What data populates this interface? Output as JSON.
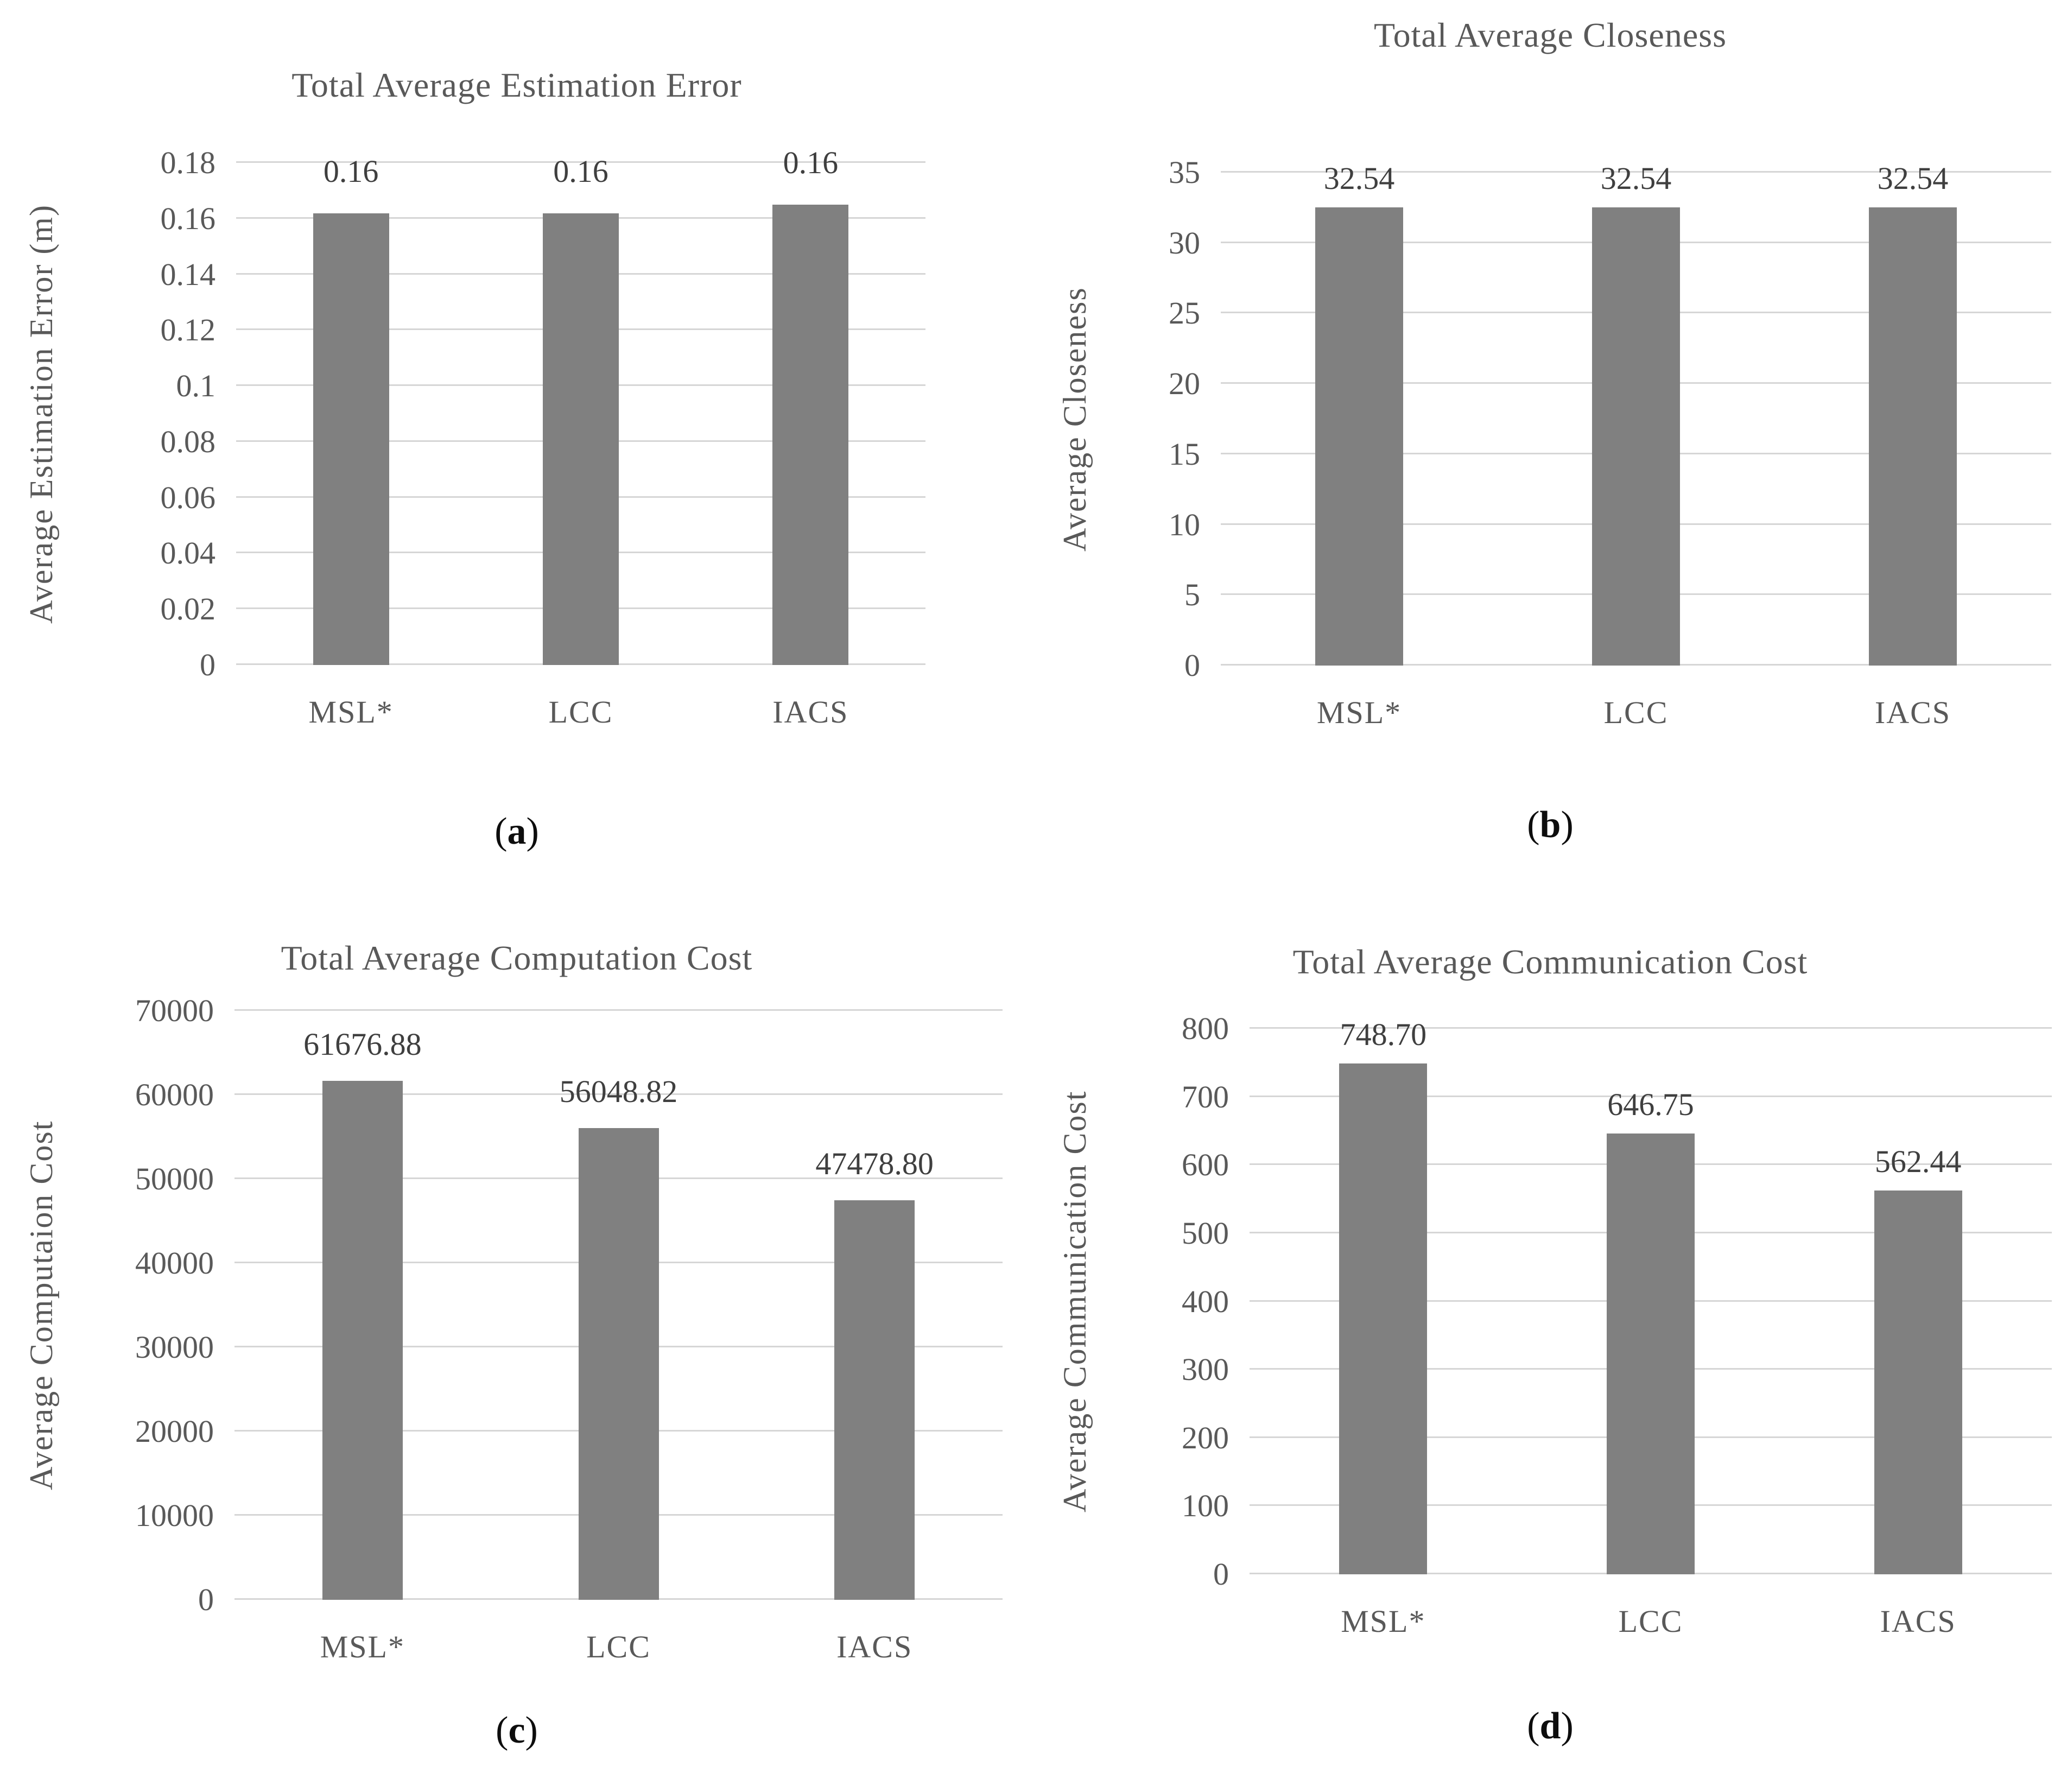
{
  "figure": {
    "bar_color": "#808080",
    "gridline_color": "#d6d6d6",
    "axis_text_color": "#595959",
    "data_label_color": "#3f3f3f",
    "background": "#ffffff"
  },
  "chart_data": [
    {
      "id": "a",
      "type": "bar",
      "title": "Total Average Estimation Error",
      "ylabel": "Average Estimation Error (m)",
      "xlabel": "",
      "categories": [
        "MSL*",
        "LCC",
        "IACS"
      ],
      "values": [
        0.162,
        0.162,
        0.165
      ],
      "data_labels": [
        "0.16",
        "0.16",
        "0.16"
      ],
      "ylim": [
        0,
        0.18
      ],
      "ytick_labels": [
        "0",
        "0.02",
        "0.04",
        "0.06",
        "0.08",
        "0.1",
        "0.12",
        "0.14",
        "0.16",
        "0.18"
      ],
      "grid": true,
      "legend": "none",
      "caption": "(a)"
    },
    {
      "id": "b",
      "type": "bar",
      "title": "Total Average Closeness",
      "ylabel": "Average Closeness",
      "xlabel": "",
      "categories": [
        "MSL*",
        "LCC",
        "IACS"
      ],
      "values": [
        32.54,
        32.54,
        32.54
      ],
      "data_labels": [
        "32.54",
        "32.54",
        "32.54"
      ],
      "ylim": [
        0,
        35
      ],
      "ytick_labels": [
        "0",
        "5",
        "10",
        "15",
        "20",
        "25",
        "30",
        "35"
      ],
      "grid": true,
      "legend": "none",
      "caption": "(b)"
    },
    {
      "id": "c",
      "type": "bar",
      "title": "Total Average Computation Cost",
      "ylabel": "Average Computaion Cost",
      "xlabel": "",
      "categories": [
        "MSL*",
        "LCC",
        "IACS"
      ],
      "values": [
        61676.88,
        56048.82,
        47478.8
      ],
      "data_labels": [
        "61676.88",
        "56048.82",
        "47478.80"
      ],
      "ylim": [
        0,
        70000
      ],
      "ytick_labels": [
        "0",
        "10000",
        "20000",
        "30000",
        "40000",
        "50000",
        "60000",
        "70000"
      ],
      "grid": true,
      "legend": "none",
      "caption": "(c)"
    },
    {
      "id": "d",
      "type": "bar",
      "title": "Total Average Communication Cost",
      "ylabel": "Average Communication Cost",
      "xlabel": "",
      "categories": [
        "MSL*",
        "LCC",
        "IACS"
      ],
      "values": [
        748.7,
        646.75,
        562.44
      ],
      "data_labels": [
        "748.70",
        "646.75",
        "562.44"
      ],
      "ylim": [
        0,
        800
      ],
      "ytick_labels": [
        "0",
        "100",
        "200",
        "300",
        "400",
        "500",
        "600",
        "700",
        "800"
      ],
      "grid": true,
      "legend": "none",
      "caption": "(d)"
    }
  ]
}
